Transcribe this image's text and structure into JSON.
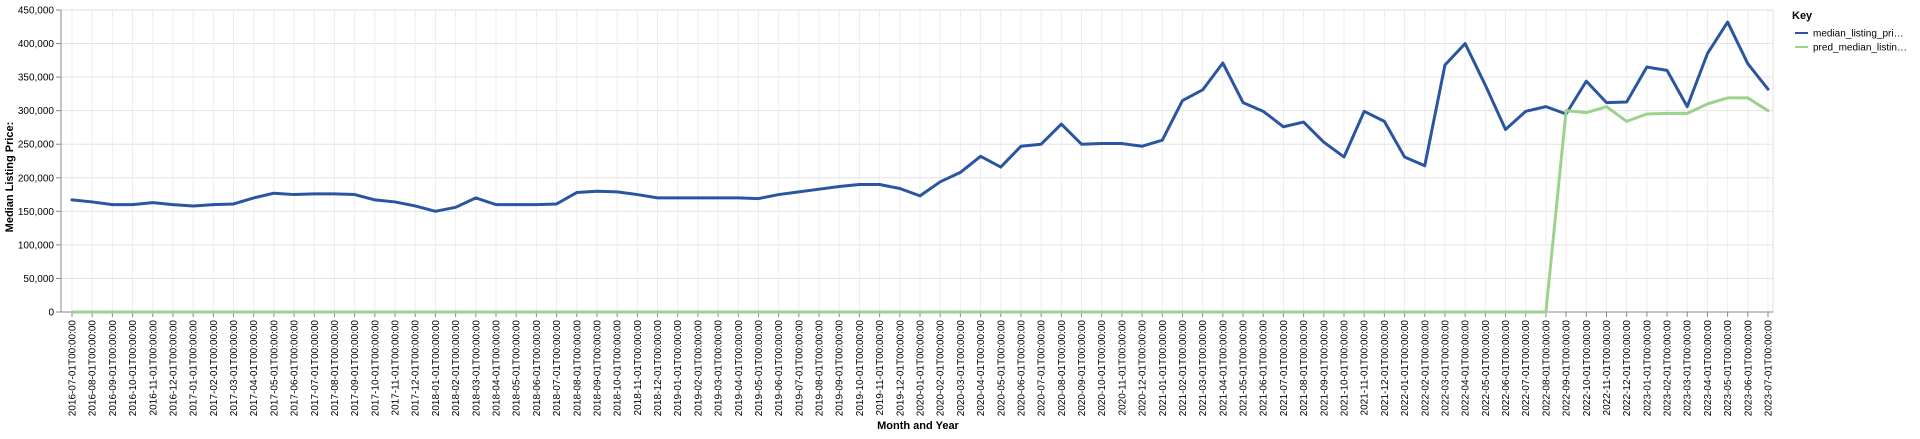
{
  "chart_data": {
    "type": "line",
    "x_title": "Month and Year",
    "y_title": "Median Listing Price:",
    "ylim": [
      0,
      450000
    ],
    "y_ticks": [
      0,
      50000,
      100000,
      150000,
      200000,
      250000,
      300000,
      350000,
      400000,
      450000
    ],
    "y_tick_labels": [
      "0",
      "50,000",
      "100,000",
      "150,000",
      "200,000",
      "250,000",
      "300,000",
      "350,000",
      "400,000",
      "450,000"
    ],
    "grid": true,
    "legend_position": "right",
    "legend_title": "Key",
    "categories": [
      "2016-07-01T00:00:00",
      "2016-08-01T00:00:00",
      "2016-09-01T00:00:00",
      "2016-10-01T00:00:00",
      "2016-11-01T00:00:00",
      "2016-12-01T00:00:00",
      "2017-01-01T00:00:00",
      "2017-02-01T00:00:00",
      "2017-03-01T00:00:00",
      "2017-04-01T00:00:00",
      "2017-05-01T00:00:00",
      "2017-06-01T00:00:00",
      "2017-07-01T00:00:00",
      "2017-08-01T00:00:00",
      "2017-09-01T00:00:00",
      "2017-10-01T00:00:00",
      "2017-11-01T00:00:00",
      "2017-12-01T00:00:00",
      "2018-01-01T00:00:00",
      "2018-02-01T00:00:00",
      "2018-03-01T00:00:00",
      "2018-04-01T00:00:00",
      "2018-05-01T00:00:00",
      "2018-06-01T00:00:00",
      "2018-07-01T00:00:00",
      "2018-08-01T00:00:00",
      "2018-09-01T00:00:00",
      "2018-10-01T00:00:00",
      "2018-11-01T00:00:00",
      "2018-12-01T00:00:00",
      "2019-01-01T00:00:00",
      "2019-02-01T00:00:00",
      "2019-03-01T00:00:00",
      "2019-04-01T00:00:00",
      "2019-05-01T00:00:00",
      "2019-06-01T00:00:00",
      "2019-07-01T00:00:00",
      "2019-08-01T00:00:00",
      "2019-09-01T00:00:00",
      "2019-10-01T00:00:00",
      "2019-11-01T00:00:00",
      "2019-12-01T00:00:00",
      "2020-01-01T00:00:00",
      "2020-02-01T00:00:00",
      "2020-03-01T00:00:00",
      "2020-04-01T00:00:00",
      "2020-05-01T00:00:00",
      "2020-06-01T00:00:00",
      "2020-07-01T00:00:00",
      "2020-08-01T00:00:00",
      "2020-09-01T00:00:00",
      "2020-10-01T00:00:00",
      "2020-11-01T00:00:00",
      "2020-12-01T00:00:00",
      "2021-01-01T00:00:00",
      "2021-02-01T00:00:00",
      "2021-03-01T00:00:00",
      "2021-04-01T00:00:00",
      "2021-05-01T00:00:00",
      "2021-06-01T00:00:00",
      "2021-07-01T00:00:00",
      "2021-08-01T00:00:00",
      "2021-09-01T00:00:00",
      "2021-10-01T00:00:00",
      "2021-11-01T00:00:00",
      "2021-12-01T00:00:00",
      "2022-01-01T00:00:00",
      "2022-02-01T00:00:00",
      "2022-03-01T00:00:00",
      "2022-04-01T00:00:00",
      "2022-05-01T00:00:00",
      "2022-06-01T00:00:00",
      "2022-07-01T00:00:00",
      "2022-08-01T00:00:00",
      "2022-09-01T00:00:00",
      "2022-10-01T00:00:00",
      "2022-11-01T00:00:00",
      "2022-12-01T00:00:00",
      "2023-01-01T00:00:00",
      "2023-02-01T00:00:00",
      "2023-03-01T00:00:00",
      "2023-04-01T00:00:00",
      "2023-05-01T00:00:00",
      "2023-06-01T00:00:00",
      "2023-07-01T00:00:00"
    ],
    "series": [
      {
        "name": "median_listing_pri…",
        "color": "#2a55a0",
        "values": [
          167000,
          164000,
          160000,
          160000,
          163000,
          160000,
          158000,
          160000,
          161000,
          170000,
          177000,
          175000,
          176000,
          176000,
          175000,
          167000,
          164000,
          158000,
          150000,
          156000,
          170000,
          160000,
          160000,
          160000,
          161000,
          178000,
          180000,
          179000,
          175000,
          170000,
          170000,
          170000,
          170000,
          170000,
          169000,
          175000,
          179000,
          183000,
          187000,
          190000,
          190000,
          184000,
          173000,
          194000,
          208000,
          232000,
          216000,
          247000,
          250000,
          280000,
          250000,
          251000,
          251000,
          247000,
          256000,
          315000,
          331000,
          371000,
          312000,
          299000,
          276000,
          283000,
          253000,
          231000,
          299000,
          284000,
          231000,
          218000,
          368000,
          400000,
          338000,
          272000,
          299000,
          306000,
          295000,
          344000,
          312000,
          313000,
          365000,
          360000,
          306000,
          385000,
          432000,
          370000,
          332000
        ]
      },
      {
        "name": "pred_median_listin…",
        "color": "#9bd28d",
        "values": [
          0,
          0,
          0,
          0,
          0,
          0,
          0,
          0,
          0,
          0,
          0,
          0,
          0,
          0,
          0,
          0,
          0,
          0,
          0,
          0,
          0,
          0,
          0,
          0,
          0,
          0,
          0,
          0,
          0,
          0,
          0,
          0,
          0,
          0,
          0,
          0,
          0,
          0,
          0,
          0,
          0,
          0,
          0,
          0,
          0,
          0,
          0,
          0,
          0,
          0,
          0,
          0,
          0,
          0,
          0,
          0,
          0,
          0,
          0,
          0,
          0,
          0,
          0,
          0,
          0,
          0,
          0,
          0,
          0,
          0,
          0,
          0,
          0,
          0,
          300000,
          297000,
          306000,
          284000,
          295000,
          296000,
          296000,
          310000,
          319000,
          319000,
          300000
        ]
      }
    ]
  }
}
